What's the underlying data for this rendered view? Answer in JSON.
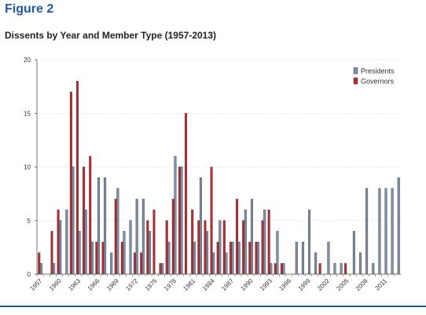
{
  "figure_label": "Figure 2",
  "chart_data": {
    "type": "bar",
    "title": "Dissents by Year and Member Type (1957-2013)",
    "xlabel": "",
    "ylabel": "",
    "ylim": [
      0,
      20
    ],
    "yticks": [
      0,
      5,
      10,
      15,
      20
    ],
    "grid": true,
    "legend_position": "top-right",
    "x": [
      1957,
      1958,
      1959,
      1960,
      1961,
      1962,
      1963,
      1964,
      1965,
      1966,
      1967,
      1968,
      1969,
      1970,
      1971,
      1972,
      1973,
      1974,
      1975,
      1976,
      1977,
      1978,
      1979,
      1980,
      1981,
      1982,
      1983,
      1984,
      1985,
      1986,
      1987,
      1988,
      1989,
      1990,
      1991,
      1992,
      1993,
      1994,
      1995,
      1996,
      1997,
      1998,
      1999,
      2000,
      2001,
      2002,
      2003,
      2004,
      2005,
      2006,
      2007,
      2008,
      2009,
      2010,
      2011,
      2012,
      2013
    ],
    "xtick_labels": [
      "1957",
      "1960",
      "1963",
      "1966",
      "1969",
      "1972",
      "1975",
      "1978",
      "1981",
      "1984",
      "1987",
      "1990",
      "1993",
      "1996",
      "1999",
      "2002",
      "2005",
      "2008",
      "2011"
    ],
    "series": [
      {
        "name": "Governors",
        "color": "#c0282e",
        "values": [
          2,
          0,
          4,
          6,
          0,
          17,
          18,
          10,
          11,
          3,
          3,
          0,
          7,
          3,
          0,
          2,
          2,
          5,
          6,
          1,
          5,
          7,
          10,
          15,
          6,
          5,
          5,
          10,
          3,
          5,
          3,
          7,
          5,
          3,
          3,
          5,
          6,
          1,
          1,
          0,
          0,
          0,
          0,
          0,
          1,
          0,
          0,
          0,
          1,
          0,
          0,
          0,
          0,
          0,
          0,
          0,
          0
        ]
      },
      {
        "name": "Presidents",
        "color": "#7e8fa8",
        "values": [
          1,
          0,
          1,
          5,
          6,
          10,
          4,
          6,
          3,
          9,
          9,
          2,
          8,
          4,
          5,
          7,
          7,
          4,
          0,
          1,
          3,
          11,
          10,
          0,
          3,
          9,
          4,
          2,
          5,
          2,
          3,
          3,
          6,
          7,
          3,
          6,
          1,
          4,
          1,
          0,
          3,
          3,
          6,
          2,
          0,
          3,
          1,
          1,
          0,
          4,
          2,
          8,
          1,
          8,
          8,
          8,
          9
        ]
      }
    ]
  }
}
